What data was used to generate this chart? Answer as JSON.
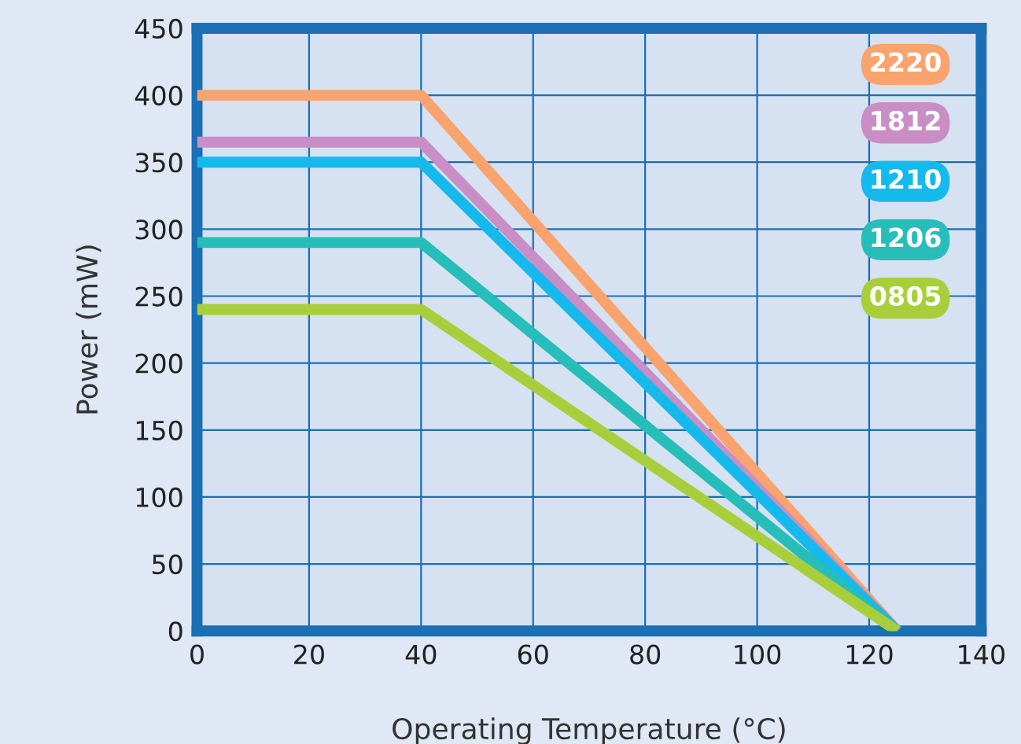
{
  "chart_data": {
    "type": "line",
    "xlabel": "Operating Temperature (°C)",
    "ylabel": "Power (mW)",
    "x": [
      0,
      40,
      125
    ],
    "series": [
      {
        "name": "2220",
        "color": "#f9a36e",
        "values": [
          400,
          400,
          0
        ]
      },
      {
        "name": "1812",
        "color": "#c98ec6",
        "values": [
          365,
          365,
          0
        ]
      },
      {
        "name": "1210",
        "color": "#16b9ec",
        "values": [
          350,
          350,
          0
        ]
      },
      {
        "name": "1206",
        "color": "#27bdb9",
        "values": [
          290,
          290,
          0
        ]
      },
      {
        "name": "0805",
        "color": "#a8cf3b",
        "values": [
          240,
          240,
          0
        ]
      }
    ],
    "xlim": [
      0,
      140
    ],
    "xticks": [
      0,
      20,
      40,
      60,
      80,
      100,
      120,
      140
    ],
    "ylim": [
      0,
      450
    ],
    "yticks": [
      0,
      50,
      100,
      150,
      200,
      250,
      300,
      350,
      400,
      450
    ],
    "grid": true,
    "legend": "top right",
    "marker": "none",
    "line_style": "solid"
  }
}
